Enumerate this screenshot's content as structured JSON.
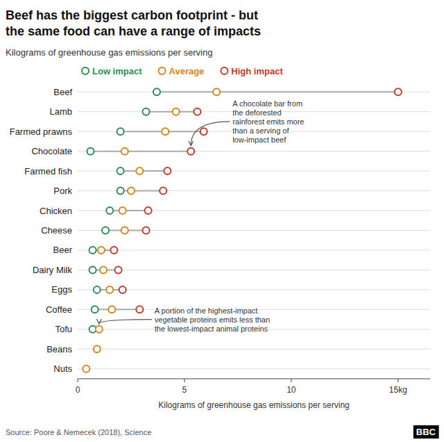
{
  "chart_data": {
    "type": "dumbbell",
    "title": "Beef has the biggest carbon footprint - but\nthe same food can have a range of impacts",
    "subtitle": "Kilograms of greenhouse gas emissions per serving",
    "xlabel": "Kilograms of greenhouse gas emissions per serving",
    "source": "Source: Poore & Nemecek (2018), Science",
    "logo": "BBC",
    "orientation": "horizontal",
    "categories": [
      "Beef",
      "Lamb",
      "Farmed prawns",
      "Chocolate",
      "Farmed fish",
      "Pork",
      "Chicken",
      "Cheese",
      "Beer",
      "Dairy Milk",
      "Eggs",
      "Coffee",
      "Tofu",
      "Beans",
      "Nuts"
    ],
    "series": [
      {
        "name": "Low impact",
        "color": "#2e8b57",
        "marker": "circle",
        "values": [
          3.7,
          3.2,
          2.0,
          0.6,
          2.0,
          2.0,
          1.5,
          1.3,
          0.7,
          0.7,
          0.9,
          0.8,
          0.7,
          null,
          null
        ]
      },
      {
        "name": "Average",
        "color": "#d4861a",
        "marker": "circle",
        "values": [
          6.5,
          4.6,
          4.1,
          2.2,
          2.9,
          2.5,
          2.1,
          2.2,
          1.1,
          1.2,
          1.5,
          1.6,
          1.0,
          0.9,
          0.4
        ]
      },
      {
        "name": "High impact",
        "color": "#c0392b",
        "marker": "circle",
        "values": [
          15.0,
          5.6,
          5.9,
          5.3,
          4.2,
          4.0,
          3.3,
          3.2,
          1.7,
          1.9,
          2.1,
          2.9,
          null,
          null,
          null
        ]
      }
    ],
    "xlim": [
      0,
      16.5
    ],
    "xticks": [
      0,
      5,
      10,
      {
        "value": 15,
        "label": "15kg"
      }
    ],
    "grid": true,
    "legend": "top",
    "annotations": [
      {
        "text": "A chocolate bar from\nthe deforested\nrainforest emits more\nthan a serving of\nlow-impact beef",
        "category": "Chocolate",
        "x": 5.3
      },
      {
        "text": "A portion of the highest-impact\nvegetable proteins emits less than\nthe lowest-impact animal proteins",
        "category": "Tofu",
        "x": 1.0
      }
    ]
  }
}
